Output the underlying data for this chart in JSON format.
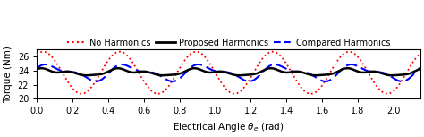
{
  "ylabel": "Torque (Nm)",
  "xlim": [
    0,
    2.15
  ],
  "ylim": [
    20,
    27
  ],
  "yticks": [
    20,
    22,
    24,
    26
  ],
  "xticks": [
    0,
    0.2,
    0.4,
    0.6,
    0.8,
    1.0,
    1.2,
    1.4,
    1.6,
    1.8,
    2.0
  ],
  "legend": [
    "No Harmonics",
    "Proposed Harmonics",
    "Compared Harmonics"
  ],
  "line_colors": [
    "#ff0000",
    "#000000",
    "#0000ff"
  ],
  "no_harm_mean": 23.7,
  "no_harm_amp": 3.0,
  "no_harm_freq": 14.65,
  "no_harm_phase": 1.05,
  "prop_mean": 23.75,
  "prop_amp1": 0.38,
  "prop_freq1": 14.65,
  "prop_phase1": 0.7,
  "prop_amp2": 0.18,
  "prop_freq2": 29.3,
  "prop_phase2": 1.5,
  "prop_amp3": 0.12,
  "prop_freq3": 43.95,
  "prop_phase3": 0.3,
  "comp_mean": 23.72,
  "comp_amp1": 0.95,
  "comp_freq1": 14.65,
  "comp_phase1": 0.3,
  "comp_amp2": 0.45,
  "comp_freq2": 29.3,
  "comp_phase2": 0.8,
  "background_color": "#ffffff",
  "legend_fontsize": 7.0,
  "tick_fontsize": 7.0,
  "axis_fontsize": 7.5
}
